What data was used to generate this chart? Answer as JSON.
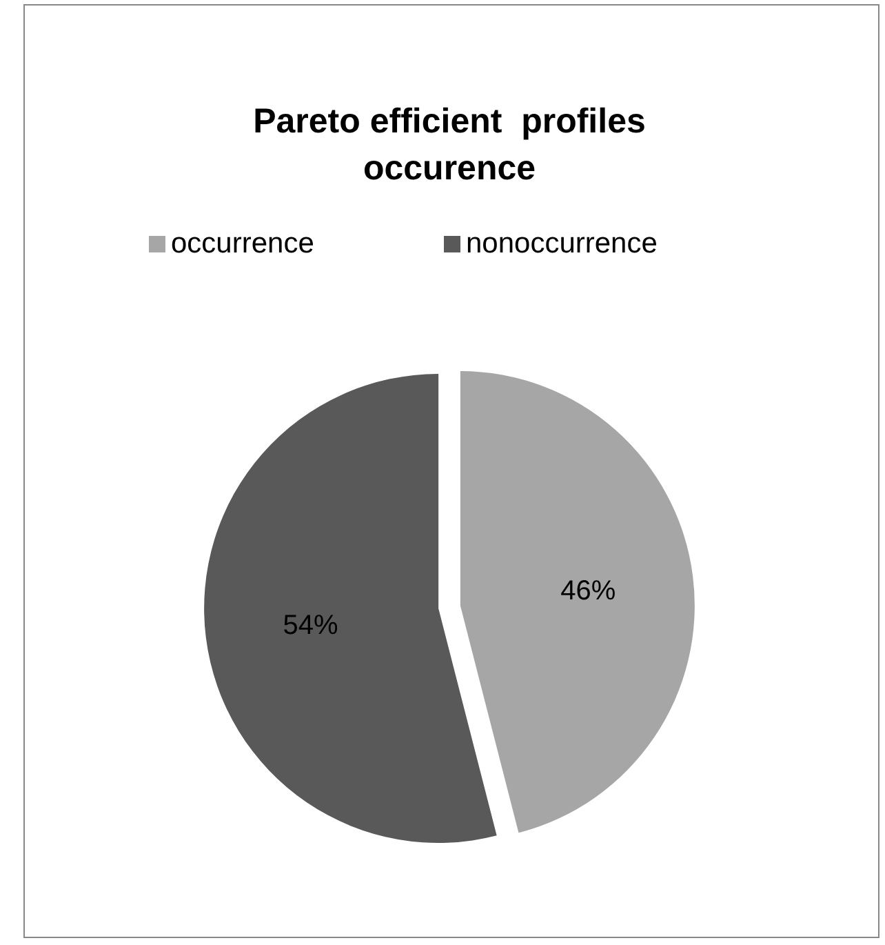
{
  "chart_data": {
    "type": "pie",
    "title": "Pareto efficient  profiles occurence",
    "categories": [
      "occurrence",
      "nonoccurrence"
    ],
    "values": [
      46,
      54
    ],
    "colors": [
      "#a6a6a6",
      "#595959"
    ],
    "value_labels": [
      "46%",
      "54%"
    ],
    "legend": "top"
  }
}
